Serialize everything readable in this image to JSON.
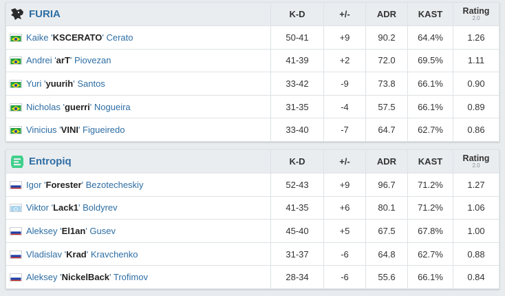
{
  "columns": {
    "kd": "K-D",
    "plusminus": "+/-",
    "adr": "ADR",
    "kast": "KAST",
    "rating": "Rating",
    "rating_version": "2.0"
  },
  "colors": {
    "link": "#2d6da3",
    "positive": "#1a9a1a",
    "negative": "#c9302c",
    "header_bg": "#eaedf0"
  },
  "teams": [
    {
      "name": "FURIA",
      "logo_icon": "furia-panther-icon",
      "players": [
        {
          "first": "Kaike",
          "nick": "KSCERATO",
          "last": "Cerato",
          "flag": "brazil-flag-icon",
          "kd": "50-41",
          "diff": "+9",
          "adr": "90.2",
          "kast": "64.4%",
          "rating": "1.26"
        },
        {
          "first": "Andrei",
          "nick": "arT",
          "last": "Piovezan",
          "flag": "brazil-flag-icon",
          "kd": "41-39",
          "diff": "+2",
          "adr": "72.0",
          "kast": "69.5%",
          "rating": "1.11"
        },
        {
          "first": "Yuri",
          "nick": "yuurih",
          "last": "Santos",
          "flag": "brazil-flag-icon",
          "kd": "33-42",
          "diff": "-9",
          "adr": "73.8",
          "kast": "66.1%",
          "rating": "0.90"
        },
        {
          "first": "Nicholas",
          "nick": "guerri",
          "last": "Nogueira",
          "flag": "brazil-flag-icon",
          "kd": "31-35",
          "diff": "-4",
          "adr": "57.5",
          "kast": "66.1%",
          "rating": "0.89"
        },
        {
          "first": "Vinicius",
          "nick": "VINI",
          "last": "Figueiredo",
          "flag": "brazil-flag-icon",
          "kd": "33-40",
          "diff": "-7",
          "adr": "64.7",
          "kast": "62.7%",
          "rating": "0.86"
        }
      ]
    },
    {
      "name": "Entropiq",
      "logo_icon": "entropiq-logo-icon",
      "players": [
        {
          "first": "Igor",
          "nick": "Forester",
          "last": "Bezotecheskiy",
          "flag": "russia-flag-icon",
          "kd": "52-43",
          "diff": "+9",
          "adr": "96.7",
          "kast": "71.2%",
          "rating": "1.27"
        },
        {
          "first": "Viktor",
          "nick": "Lack1",
          "last": "Boldyrev",
          "flag": "cis-flag-icon",
          "kd": "41-35",
          "diff": "+6",
          "adr": "80.1",
          "kast": "71.2%",
          "rating": "1.06"
        },
        {
          "first": "Aleksey",
          "nick": "El1an",
          "last": "Gusev",
          "flag": "russia-flag-icon",
          "kd": "45-40",
          "diff": "+5",
          "adr": "67.5",
          "kast": "67.8%",
          "rating": "1.00"
        },
        {
          "first": "Vladislav",
          "nick": "Krad",
          "last": "Kravchenko",
          "flag": "russia-flag-icon",
          "kd": "31-37",
          "diff": "-6",
          "adr": "64.8",
          "kast": "62.7%",
          "rating": "0.88"
        },
        {
          "first": "Aleksey",
          "nick": "NickelBack",
          "last": "Trofimov",
          "flag": "russia-flag-icon",
          "kd": "28-34",
          "diff": "-6",
          "adr": "55.6",
          "kast": "66.1%",
          "rating": "0.84"
        }
      ]
    }
  ]
}
